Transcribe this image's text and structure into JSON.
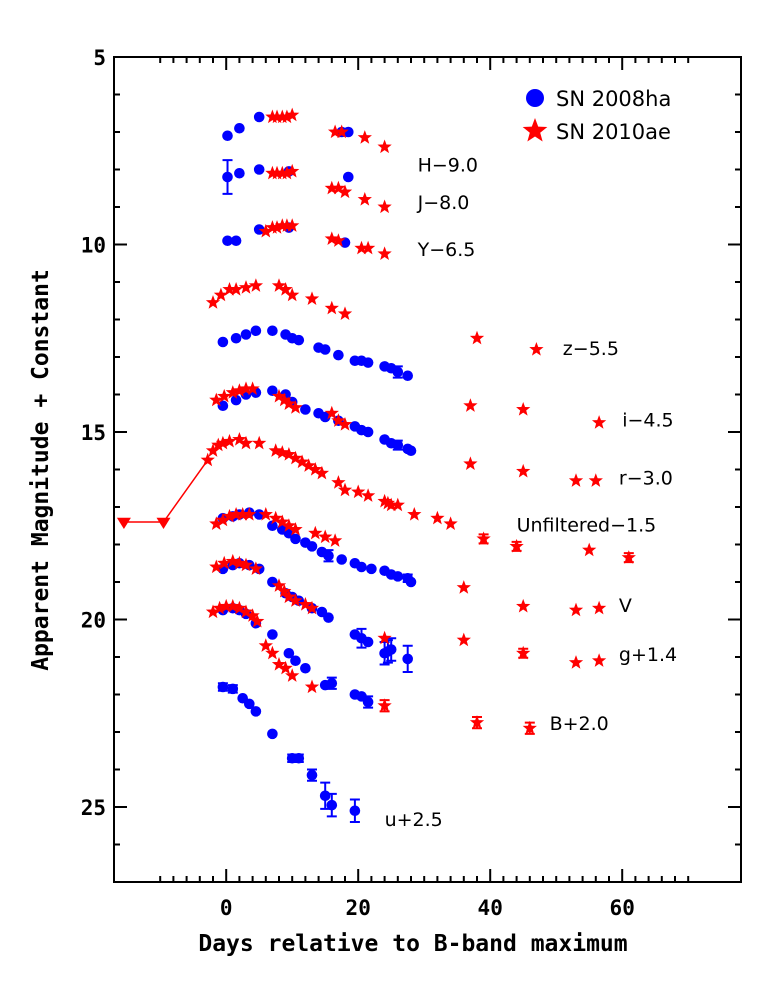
{
  "chart_data": {
    "type": "scatter",
    "title": "",
    "xlabel": "Days relative to B-band maximum",
    "ylabel": "Apparent Magnitude + Constant",
    "xlim": [
      -17,
      78
    ],
    "ylim": [
      27,
      5
    ],
    "y_inverted": true,
    "x_major_ticks": [
      0,
      20,
      40,
      60
    ],
    "y_major_ticks": [
      5,
      10,
      15,
      20,
      25
    ],
    "grid": false,
    "legend_position": "top-right",
    "legend": [
      {
        "label": "SN 2008ha",
        "marker": "circle",
        "color": "#0000ff"
      },
      {
        "label": "SN 2010ae",
        "marker": "star",
        "color": "#ff0000"
      }
    ],
    "band_labels": [
      {
        "text": "H−9.0",
        "x": 29.0,
        "y": 8.05
      },
      {
        "text": "J−8.0",
        "x": 29.0,
        "y": 9.05
      },
      {
        "text": "Y−6.5",
        "x": 29.0,
        "y": 10.3
      },
      {
        "text": "z−5.5",
        "x": 51.0,
        "y": 12.95
      },
      {
        "text": "i−4.5",
        "x": 60.0,
        "y": 14.85
      },
      {
        "text": "r−3.0",
        "x": 59.5,
        "y": 16.4
      },
      {
        "text": "Unfiltered−1.5",
        "x": 44.0,
        "y": 17.65
      },
      {
        "text": "V",
        "x": 59.5,
        "y": 19.8
      },
      {
        "text": "g+1.4",
        "x": 59.5,
        "y": 21.1
      },
      {
        "text": "B+2.0",
        "x": 49.0,
        "y": 22.95
      },
      {
        "text": "u+2.5",
        "x": 24.0,
        "y": 25.5
      }
    ],
    "series": [
      {
        "name": "SN 2008ha",
        "band": "H",
        "marker": "circle",
        "color": "#0000ff",
        "x": [
          0.2,
          2.0,
          5.0,
          17.5,
          18.5
        ],
        "y": [
          7.1,
          6.9,
          6.6,
          7.0,
          7.0
        ]
      },
      {
        "name": "SN 2010ae",
        "band": "H",
        "marker": "star",
        "color": "#ff0000",
        "x": [
          7.0,
          7.7,
          8.5,
          9.2,
          10.0,
          16.5,
          17.5,
          21.0,
          24.0
        ],
        "y": [
          6.6,
          6.6,
          6.6,
          6.6,
          6.55,
          7.0,
          7.0,
          7.15,
          7.4
        ]
      },
      {
        "name": "SN 2008ha",
        "band": "J",
        "marker": "circle",
        "color": "#0000ff",
        "x": [
          0.2,
          2.0,
          5.0,
          9.5,
          18.5
        ],
        "y": [
          8.2,
          8.1,
          8.0,
          8.05,
          8.2
        ],
        "yerr": [
          0.45,
          0,
          0,
          0,
          0
        ]
      },
      {
        "name": "SN 2010ae",
        "band": "J",
        "marker": "star",
        "color": "#ff0000",
        "x": [
          7.0,
          7.7,
          8.5,
          9.2,
          10.0,
          16.0,
          17.0,
          18.0,
          21.0,
          24.0
        ],
        "y": [
          8.1,
          8.1,
          8.1,
          8.1,
          8.05,
          8.5,
          8.5,
          8.6,
          8.8,
          9.0
        ]
      },
      {
        "name": "SN 2008ha",
        "band": "Y",
        "marker": "circle",
        "color": "#0000ff",
        "x": [
          0.2,
          1.5,
          5.0,
          9.5,
          18.0
        ],
        "y": [
          9.9,
          9.9,
          9.6,
          9.55,
          9.95
        ]
      },
      {
        "name": "SN 2010ae",
        "band": "Y",
        "marker": "star",
        "color": "#ff0000",
        "x": [
          6.0,
          7.0,
          7.7,
          8.5,
          9.2,
          10.0,
          16.0,
          17.0,
          20.5,
          21.5,
          24.0
        ],
        "y": [
          9.65,
          9.55,
          9.55,
          9.5,
          9.5,
          9.5,
          9.85,
          9.9,
          10.1,
          10.1,
          10.25
        ]
      },
      {
        "name": "SN 2008ha",
        "band": "z",
        "marker": "circle",
        "color": "#0000ff",
        "x": [
          -0.5,
          1.5,
          3.0,
          4.5,
          7.0,
          9.0,
          10.0,
          11.0,
          14.0,
          15.0,
          17.0,
          19.5,
          20.5,
          21.5,
          24.0,
          25.0,
          26.0,
          27.5
        ],
        "y": [
          12.6,
          12.5,
          12.4,
          12.3,
          12.3,
          12.4,
          12.5,
          12.55,
          12.75,
          12.8,
          12.95,
          13.1,
          13.1,
          13.15,
          13.25,
          13.3,
          13.4,
          13.5
        ],
        "yerr": [
          0,
          0,
          0,
          0,
          0,
          0,
          0,
          0,
          0,
          0,
          0,
          0,
          0,
          0,
          0,
          0,
          0.15,
          0
        ]
      },
      {
        "name": "SN 2010ae",
        "band": "z",
        "marker": "star",
        "color": "#ff0000",
        "x": [
          -2.0,
          -0.8,
          0.5,
          1.5,
          3.0,
          4.5,
          8.0,
          9.0,
          10.0,
          13.0,
          16.0,
          18.0,
          38.0,
          47.0
        ],
        "y": [
          11.55,
          11.35,
          11.2,
          11.2,
          11.15,
          11.1,
          11.1,
          11.2,
          11.35,
          11.45,
          11.7,
          11.85,
          12.5,
          12.8
        ]
      },
      {
        "name": "SN 2008ha",
        "band": "i",
        "marker": "circle",
        "color": "#0000ff",
        "x": [
          -0.5,
          1.5,
          3.0,
          4.5,
          7.0,
          9.0,
          10.0,
          12.0,
          14.0,
          15.0,
          17.0,
          19.5,
          20.5,
          21.5,
          24.0,
          25.0,
          26.0,
          27.5,
          28.0
        ],
        "y": [
          14.3,
          14.15,
          14.0,
          13.95,
          13.9,
          14.0,
          14.2,
          14.4,
          14.5,
          14.6,
          14.7,
          14.85,
          14.95,
          15.0,
          15.2,
          15.3,
          15.35,
          15.45,
          15.5
        ],
        "yerr": [
          0,
          0,
          0,
          0,
          0,
          0,
          0,
          0,
          0,
          0,
          0,
          0,
          0,
          0,
          0,
          0,
          0.12,
          0,
          0
        ]
      },
      {
        "name": "SN 2010ae",
        "band": "i",
        "marker": "star",
        "color": "#ff0000",
        "x": [
          -1.5,
          -0.3,
          1.0,
          2.0,
          3.0,
          4.0,
          8.0,
          8.8,
          9.5,
          10.5,
          16.0,
          17.0,
          18.0,
          37.0,
          45.0,
          56.5
        ],
        "y": [
          14.15,
          14.05,
          13.95,
          13.9,
          13.85,
          13.85,
          14.05,
          14.15,
          14.25,
          14.35,
          14.5,
          14.7,
          14.8,
          14.3,
          14.4,
          14.75
        ]
      },
      {
        "name": "SN 2010ae",
        "band": "r",
        "marker": "star",
        "color": "#ff0000",
        "x": [
          -2.8,
          -2.0,
          -1.2,
          -0.5,
          0.5,
          2.0,
          3.0,
          5.0,
          7.5,
          8.5,
          9.5,
          10.5,
          11.5,
          12.5,
          13.5,
          14.5,
          17.0,
          18.0,
          20.0,
          21.5,
          24.0,
          24.5,
          25.0,
          26.0,
          28.5,
          37.0,
          45.0,
          53.0,
          56.0
        ],
        "y": [
          15.75,
          15.5,
          15.35,
          15.3,
          15.25,
          15.2,
          15.3,
          15.3,
          15.5,
          15.55,
          15.6,
          15.7,
          15.8,
          15.9,
          16.0,
          16.1,
          16.35,
          16.55,
          16.6,
          16.7,
          16.85,
          16.9,
          16.95,
          16.95,
          17.2,
          15.85,
          16.05,
          16.3,
          16.3
        ]
      },
      {
        "name": "SN 2010ae",
        "band": "Unfiltered",
        "marker": "star",
        "color": "#ff0000",
        "x": [
          -15.5,
          -9.5
        ],
        "y": [
          17.4,
          17.4
        ],
        "upper_limit": true,
        "connected": true
      },
      {
        "name": "SN 2008ha",
        "band": "Unfiltered",
        "marker": "circle",
        "color": "#0000ff",
        "x": [
          -0.5,
          1.0,
          2.0,
          3.5,
          5.0,
          7.0,
          8.5,
          9.5,
          10.5,
          12.0,
          13.0,
          14.5,
          15.5,
          17.5,
          19.5,
          20.5,
          22.0,
          24.0,
          25.0,
          26.0,
          27.5,
          28.0
        ],
        "y": [
          17.3,
          17.25,
          17.2,
          17.15,
          17.2,
          17.5,
          17.6,
          17.7,
          17.85,
          17.95,
          18.05,
          18.2,
          18.3,
          18.4,
          18.5,
          18.6,
          18.65,
          18.7,
          18.8,
          18.85,
          18.9,
          19.0
        ],
        "yerr": [
          0,
          0,
          0,
          0,
          0,
          0,
          0,
          0,
          0,
          0,
          0,
          0,
          0.15,
          0,
          0,
          0,
          0,
          0,
          0,
          0,
          0.1,
          0
        ]
      },
      {
        "name": "SN 2010ae",
        "band": "Unfiltered",
        "marker": "star",
        "color": "#ff0000",
        "x": [
          -1.5,
          -0.5,
          0.5,
          1.5,
          2.5,
          3.5,
          6.0,
          7.5,
          8.5,
          9.5,
          10.5,
          13.5,
          15.0,
          16.5,
          32.0,
          34.0,
          39.0,
          44.0,
          55.0,
          61.0
        ],
        "y": [
          17.45,
          17.35,
          17.25,
          17.2,
          17.2,
          17.2,
          17.2,
          17.3,
          17.4,
          17.5,
          17.6,
          17.7,
          17.8,
          17.9,
          17.3,
          17.45,
          17.85,
          18.05,
          18.15,
          18.35
        ],
        "yerr": [
          0,
          0,
          0,
          0,
          0,
          0,
          0,
          0,
          0,
          0,
          0,
          0,
          0,
          0,
          0,
          0,
          0.12,
          0.12,
          0,
          0.12
        ]
      },
      {
        "name": "SN 2008ha",
        "band": "V",
        "marker": "circle",
        "color": "#0000ff",
        "x": [
          -0.5,
          1.0,
          2.0,
          3.5,
          5.0,
          7.0,
          9.0,
          10.0,
          11.0,
          13.0,
          14.5,
          15.5,
          19.5,
          20.5,
          21.5,
          24.0,
          25.0
        ],
        "y": [
          18.65,
          18.55,
          18.5,
          18.55,
          18.65,
          19.0,
          19.3,
          19.4,
          19.5,
          19.7,
          19.8,
          19.95,
          20.4,
          20.5,
          20.6,
          20.9,
          20.8
        ],
        "yerr": [
          0,
          0,
          0,
          0,
          0,
          0,
          0,
          0,
          0,
          0,
          0,
          0,
          0,
          0.25,
          0,
          0.3,
          0.3
        ]
      },
      {
        "name": "SN 2010ae",
        "band": "V",
        "marker": "star",
        "color": "#ff0000",
        "x": [
          -1.5,
          -0.3,
          1.0,
          2.0,
          3.0,
          4.5,
          8.0,
          8.8,
          9.5,
          10.5,
          12.0,
          13.0,
          36.0,
          45.0,
          53.0,
          56.5
        ],
        "y": [
          18.6,
          18.5,
          18.45,
          18.5,
          18.55,
          18.65,
          19.1,
          19.25,
          19.4,
          19.5,
          19.6,
          19.7,
          19.15,
          19.65,
          19.75,
          19.7
        ]
      },
      {
        "name": "SN 2008ha",
        "band": "g",
        "marker": "circle",
        "color": "#0000ff",
        "x": [
          -0.5,
          1.0,
          2.0,
          3.0,
          4.5,
          7.0,
          9.5,
          10.5,
          12.0,
          15.0,
          16.0,
          19.5,
          20.5,
          21.5,
          24.5,
          27.5
        ],
        "y": [
          19.75,
          19.7,
          19.75,
          19.85,
          20.1,
          20.4,
          20.9,
          21.1,
          21.3,
          21.75,
          21.7,
          22.0,
          22.05,
          22.2,
          20.85,
          21.05
        ],
        "yerr": [
          0,
          0,
          0,
          0,
          0,
          0,
          0,
          0,
          0,
          0,
          0.15,
          0,
          0,
          0.15,
          0.3,
          0.35
        ]
      },
      {
        "name": "SN 2010ae",
        "band": "g",
        "marker": "star",
        "color": "#ff0000",
        "x": [
          -2.0,
          -1.0,
          0.0,
          1.0,
          2.0,
          3.0,
          4.0,
          4.7,
          6.0,
          7.0,
          8.0,
          9.0,
          10.0,
          13.0,
          24.0,
          36.0,
          45.0,
          53.0,
          56.5
        ],
        "y": [
          19.8,
          19.7,
          19.65,
          19.65,
          19.7,
          19.8,
          19.9,
          20.05,
          20.7,
          20.9,
          21.2,
          21.3,
          21.5,
          21.8,
          20.5,
          20.55,
          20.9,
          21.15,
          21.1
        ],
        "yerr": [
          0,
          0,
          0,
          0,
          0,
          0,
          0,
          0,
          0,
          0,
          0,
          0,
          0,
          0,
          0,
          0,
          0.12,
          0,
          0
        ]
      },
      {
        "name": "SN 2010ae",
        "band": "B",
        "marker": "star",
        "color": "#ff0000",
        "x": [
          24.0,
          38.0,
          46.0
        ],
        "y": [
          22.3,
          22.75,
          22.9
        ],
        "yerr": [
          0.15,
          0.15,
          0.15
        ]
      },
      {
        "name": "SN 2008ha",
        "band": "u",
        "marker": "circle",
        "color": "#0000ff",
        "x": [
          -0.5,
          1.0,
          2.5,
          3.5,
          4.5,
          7.0,
          10.0,
          11.0,
          13.0,
          15.0,
          16.0,
          19.5
        ],
        "y": [
          21.8,
          21.85,
          22.1,
          22.25,
          22.45,
          23.05,
          23.7,
          23.7,
          24.15,
          24.7,
          24.95,
          25.1
        ],
        "yerr": [
          0.1,
          0.1,
          0,
          0,
          0,
          0,
          0.1,
          0.1,
          0.15,
          0.35,
          0.3,
          0.3
        ]
      }
    ]
  }
}
